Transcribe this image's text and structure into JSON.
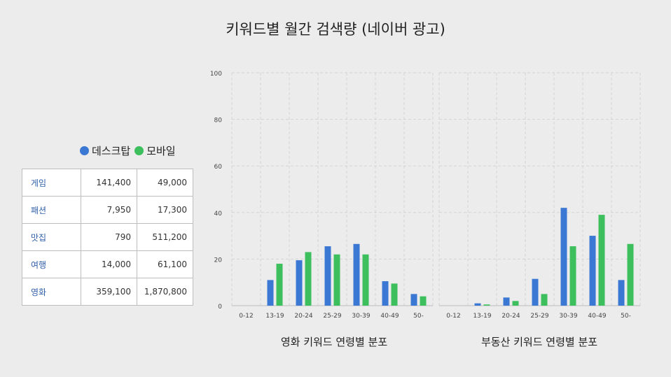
{
  "title": "키워드별 월간 검색량 (네이버 광고)",
  "legend": {
    "desktop": {
      "label": "데스크탑",
      "color": "#3a78d4"
    },
    "mobile": {
      "label": "모바일",
      "color": "#3cbf5c"
    }
  },
  "table": {
    "rows": [
      {
        "keyword": "게임",
        "desktop": "141,400",
        "mobile": "49,000"
      },
      {
        "keyword": "패션",
        "desktop": "7,950",
        "mobile": "17,300"
      },
      {
        "keyword": "맛집",
        "desktop": "790",
        "mobile": "511,200"
      },
      {
        "keyword": "여행",
        "desktop": "14,000",
        "mobile": "61,100"
      },
      {
        "keyword": "영화",
        "desktop": "359,100",
        "mobile": "1,870,800"
      }
    ]
  },
  "chart_data": [
    {
      "type": "bar",
      "title": "영화 키워드 연령별 분포",
      "categories": [
        "0-12",
        "13-19",
        "20-24",
        "25-29",
        "30-39",
        "40-49",
        "50-"
      ],
      "ylim": [
        0,
        100
      ],
      "yticks": [
        0,
        20,
        40,
        60,
        80,
        100
      ],
      "grid": true,
      "series": [
        {
          "name": "데스크탑",
          "values": [
            0,
            11,
            19.5,
            25.5,
            26.5,
            10.5,
            5
          ]
        },
        {
          "name": "모바일",
          "values": [
            0,
            18,
            23,
            22,
            22,
            9.5,
            4
          ]
        }
      ]
    },
    {
      "type": "bar",
      "title": "부동산 키워드 연령별 분포",
      "categories": [
        "0-12",
        "13-19",
        "20-24",
        "25-29",
        "30-39",
        "40-49",
        "50-"
      ],
      "ylim": [
        0,
        100
      ],
      "grid": true,
      "series": [
        {
          "name": "데스크탑",
          "values": [
            0,
            1,
            3.5,
            11.5,
            42,
            30,
            11
          ]
        },
        {
          "name": "모바일",
          "values": [
            0,
            0.5,
            2,
            5,
            25.5,
            39,
            26.5
          ]
        }
      ]
    }
  ]
}
